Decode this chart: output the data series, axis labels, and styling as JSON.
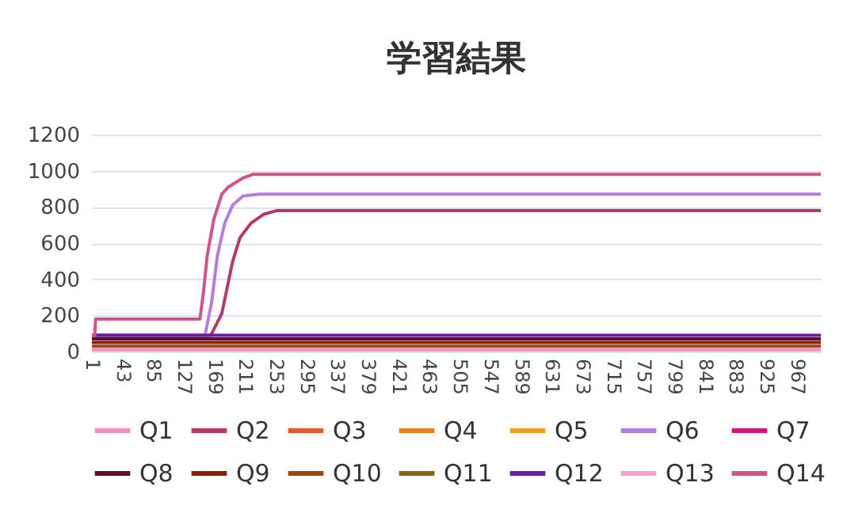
{
  "chart_data": {
    "type": "line",
    "title": "学習結果",
    "xlim": [
      1,
      1000
    ],
    "xticks": [
      1,
      43,
      85,
      127,
      169,
      211,
      253,
      295,
      337,
      379,
      421,
      463,
      505,
      547,
      589,
      631,
      673,
      715,
      757,
      799,
      841,
      883,
      925,
      967
    ],
    "ylim": [
      0,
      1200
    ],
    "yticks": [
      0,
      200,
      400,
      600,
      800,
      {
        "value": 1000,
        "label": "1000"
      },
      {
        "value": 1200,
        "label": "1200"
      }
    ],
    "grid": "y",
    "legend": "bottom",
    "series": [
      {
        "name": "Q1",
        "color": "#f48fc0",
        "x": [
          1,
          1000
        ],
        "values": [
          10,
          10
        ]
      },
      {
        "name": "Q2",
        "color": "#b5386b",
        "x": [
          1,
          164,
          179,
          194,
          204,
          219,
          237,
          255,
          1000
        ],
        "values": [
          90,
          90,
          210,
          500,
          630,
          710,
          760,
          780,
          780
        ]
      },
      {
        "name": "Q3",
        "color": "#e8552e",
        "values": [
          null
        ]
      },
      {
        "name": "Q4",
        "color": "#f07d1e",
        "values": [
          null
        ]
      },
      {
        "name": "Q5",
        "color": "#f0a01e",
        "values": [
          null
        ]
      },
      {
        "name": "Q6",
        "color": "#b47ee0",
        "x": [
          1,
          156,
          165,
          173,
          183,
          194,
          208,
          230,
          1000
        ],
        "values": [
          90,
          90,
          270,
          530,
          710,
          810,
          860,
          870,
          870
        ]
      },
      {
        "name": "Q7",
        "color": "#d8137f",
        "values": [
          null
        ]
      },
      {
        "name": "Q8",
        "color": "#5c0f30",
        "x": [
          1,
          1000
        ],
        "values": [
          70,
          70
        ]
      },
      {
        "name": "Q9",
        "color": "#8b1e0a",
        "x": [
          1,
          1000
        ],
        "values": [
          50,
          50
        ]
      },
      {
        "name": "Q10",
        "color": "#9a4a10",
        "x": [
          1,
          1000
        ],
        "values": [
          30,
          30
        ]
      },
      {
        "name": "Q11",
        "color": "#8a6410",
        "values": [
          null
        ]
      },
      {
        "name": "Q12",
        "color": "#6a1fa0",
        "x": [
          1,
          1000
        ],
        "values": [
          90,
          90
        ]
      },
      {
        "name": "Q13",
        "color": "#f2a4d0",
        "values": [
          null
        ]
      },
      {
        "name": "Q14",
        "color": "#d0548a",
        "x": [
          1,
          5,
          6,
          149,
          154,
          159,
          168,
          179,
          188,
          208,
          222,
          1000
        ],
        "values": [
          90,
          90,
          180,
          180,
          330,
          530,
          730,
          870,
          910,
          960,
          980,
          980
        ]
      }
    ]
  }
}
